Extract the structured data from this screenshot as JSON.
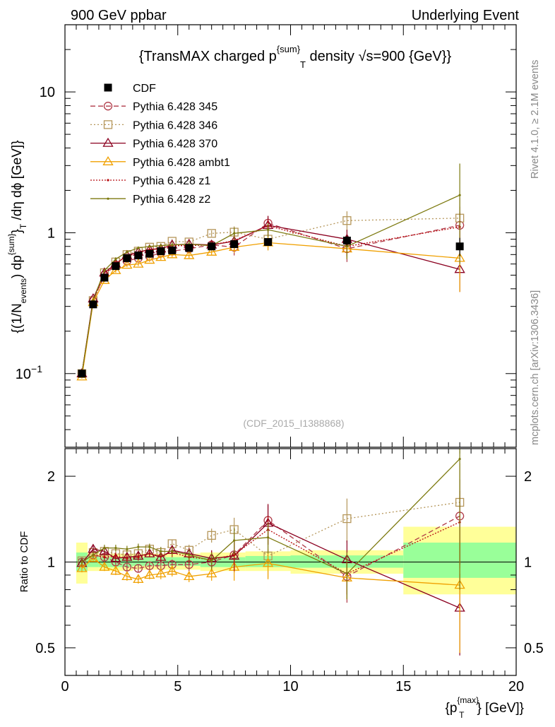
{
  "header": {
    "left": "900 GeV ppbar",
    "right": "Underlying Event"
  },
  "side_labels": {
    "rivet": "Rivet 4.1.0, ≥ 2.1M events",
    "mcplots": "mcplots.cern.ch [arXiv:1306.3436]"
  },
  "watermark": "(CDF_2015_I1388868)",
  "colors": {
    "cdf": "#000000",
    "p345": "#b03a48",
    "p346": "#b5965a",
    "p370": "#8b0020",
    "ambt1": "#f0a000",
    "z1": "#b80c10",
    "z2": "#7d7a10",
    "band_green": "#99ff99",
    "band_yellow": "#ffff99"
  },
  "chart_data": [
    {
      "type": "line",
      "title": "{TransMAX charged p^{sum}_T density √s=900 {GeV}}",
      "title_parts": {
        "a": "{TransMAX charged p",
        "sup": "{sum}",
        "sub": "T",
        "b": " density √s=900 {GeV}}"
      },
      "ylabel_parts": {
        "a": "{(1/N",
        "sub1": "events",
        "b": ") dp",
        "sup2": "{sum}",
        "c": "}",
        "sub3": "T",
        "d": " /dη  dϕ  [GeV]}"
      },
      "yscale": "log",
      "xlim": [
        0,
        20
      ],
      "ylim": [
        0.03,
        30
      ],
      "yticks": [
        {
          "v": 0.1,
          "label": "10",
          "exp": "−1"
        },
        {
          "v": 1,
          "label": "1",
          "exp": ""
        },
        {
          "v": 10,
          "label": "10",
          "exp": ""
        }
      ],
      "x": [
        0.75,
        1.25,
        1.75,
        2.25,
        2.75,
        3.25,
        3.75,
        4.25,
        4.75,
        5.5,
        6.5,
        7.5,
        9.0,
        12.5,
        17.5
      ],
      "series": [
        {
          "key": "cdf",
          "name": "CDF",
          "marker": "square_filled",
          "dash": "",
          "values": [
            0.1,
            0.31,
            0.48,
            0.58,
            0.66,
            0.69,
            0.71,
            0.74,
            0.75,
            0.78,
            0.8,
            0.83,
            0.86,
            0.88,
            0.8
          ],
          "err": [
            0.005,
            0.01,
            0.015,
            0.02,
            0.02,
            0.02,
            0.02,
            0.025,
            0.025,
            0.03,
            0.03,
            0.04,
            0.05,
            0.07,
            0.12
          ]
        },
        {
          "key": "p345",
          "name": "Pythia 6.428 345",
          "marker": "circle_open",
          "dash": "7,4",
          "values": [
            0.1,
            0.33,
            0.5,
            0.59,
            0.63,
            0.66,
            0.68,
            0.72,
            0.74,
            0.77,
            0.82,
            0.79,
            1.17,
            0.77,
            1.13
          ],
          "err": [
            0.003,
            0.01,
            0.015,
            0.02,
            0.02,
            0.02,
            0.02,
            0.03,
            0.03,
            0.04,
            0.05,
            0.1,
            0.15,
            0.15,
            0.4
          ]
        },
        {
          "key": "p346",
          "name": "Pythia 6.428 346",
          "marker": "square_open",
          "dash": "2,3",
          "values": [
            0.1,
            0.33,
            0.52,
            0.62,
            0.7,
            0.74,
            0.79,
            0.8,
            0.87,
            0.86,
            0.99,
            1.01,
            0.9,
            1.22,
            1.27
          ],
          "err": [
            0.003,
            0.01,
            0.015,
            0.02,
            0.02,
            0.02,
            0.03,
            0.03,
            0.03,
            0.04,
            0.05,
            0.1,
            0.15,
            0.2,
            0.5
          ]
        },
        {
          "key": "p370",
          "name": "Pythia 6.428 370",
          "marker": "triangle_open",
          "dash": "",
          "values": [
            0.1,
            0.34,
            0.52,
            0.6,
            0.69,
            0.73,
            0.76,
            0.77,
            0.82,
            0.83,
            0.82,
            0.87,
            1.13,
            0.9,
            0.55
          ],
          "err": [
            0.003,
            0.01,
            0.015,
            0.02,
            0.02,
            0.02,
            0.02,
            0.03,
            0.03,
            0.04,
            0.05,
            0.1,
            0.18,
            0.15,
            0.17
          ]
        },
        {
          "key": "ambt1",
          "name": "Pythia 6.428 ambt1",
          "marker": "triangle_open",
          "dash": "",
          "values": [
            0.095,
            0.32,
            0.46,
            0.54,
            0.59,
            0.6,
            0.64,
            0.67,
            0.7,
            0.69,
            0.73,
            0.79,
            0.85,
            0.77,
            0.66
          ],
          "err": [
            0.003,
            0.01,
            0.015,
            0.02,
            0.02,
            0.02,
            0.02,
            0.03,
            0.03,
            0.03,
            0.04,
            0.07,
            0.1,
            0.12,
            0.28
          ]
        },
        {
          "key": "z1",
          "name": "Pythia 6.428 z1",
          "marker": "dot",
          "dash": "2,2",
          "values": [
            0.1,
            0.33,
            0.5,
            0.61,
            0.68,
            0.72,
            0.76,
            0.78,
            0.81,
            0.81,
            0.82,
            0.88,
            1.12,
            0.8,
            1.1
          ],
          "err": [
            0.003,
            0.01,
            0.015,
            0.02,
            0.02,
            0.02,
            0.02,
            0.03,
            0.03,
            0.04,
            0.05,
            0.1,
            0.12,
            0.12,
            0.3
          ]
        },
        {
          "key": "z2",
          "name": "Pythia 6.428 z2",
          "marker": "dot",
          "dash": "",
          "values": [
            0.1,
            0.33,
            0.54,
            0.65,
            0.73,
            0.78,
            0.8,
            0.81,
            0.82,
            0.83,
            0.81,
            0.99,
            1.05,
            0.8,
            1.85
          ],
          "err": [
            0.003,
            0.01,
            0.015,
            0.02,
            0.02,
            0.02,
            0.02,
            0.03,
            0.03,
            0.04,
            0.05,
            0.1,
            0.12,
            0.15,
            1.25
          ]
        }
      ]
    },
    {
      "type": "line",
      "ylabel": "Ratio to CDF",
      "xlabel_parts": {
        "a": "{p",
        "sup": "{max}",
        "sub": "T",
        "b": "} [GeV]}"
      },
      "yscale": "log",
      "xlim": [
        0,
        20
      ],
      "ylim": [
        0.4,
        2.5
      ],
      "xticks": [
        0,
        5,
        10,
        15,
        20
      ],
      "yticks": [
        {
          "v": 0.5,
          "label": "0.5"
        },
        {
          "v": 1,
          "label": "1"
        },
        {
          "v": 2,
          "label": "2"
        }
      ],
      "bands": [
        {
          "x0": 0.5,
          "x1": 1.0,
          "green": [
            0.93,
            1.08
          ],
          "yellow": [
            0.84,
            1.17
          ]
        },
        {
          "x0": 1.0,
          "x1": 1.5,
          "green": [
            0.96,
            1.05
          ],
          "yellow": [
            0.93,
            1.08
          ]
        },
        {
          "x0": 1.5,
          "x1": 3.0,
          "green": [
            0.96,
            1.04
          ],
          "yellow": [
            0.93,
            1.07
          ]
        },
        {
          "x0": 3.0,
          "x1": 6.0,
          "green": [
            0.97,
            1.04
          ],
          "yellow": [
            0.94,
            1.07
          ]
        },
        {
          "x0": 6.0,
          "x1": 8.0,
          "green": [
            0.96,
            1.04
          ],
          "yellow": [
            0.93,
            1.08
          ]
        },
        {
          "x0": 8.0,
          "x1": 10.0,
          "green": [
            0.96,
            1.05
          ],
          "yellow": [
            0.93,
            1.09
          ]
        },
        {
          "x0": 10.0,
          "x1": 15.0,
          "green": [
            0.955,
            1.055
          ],
          "yellow": [
            0.91,
            1.1
          ]
        },
        {
          "x0": 15.0,
          "x1": 20.0,
          "green": [
            0.88,
            1.17
          ],
          "yellow": [
            0.77,
            1.33
          ]
        }
      ],
      "series": [
        {
          "key": "p345",
          "values": [
            1.0,
            1.06,
            1.04,
            1.0,
            0.96,
            0.95,
            0.97,
            0.97,
            0.98,
            0.98,
            1.0,
            1.06,
            1.4,
            0.89,
            1.45
          ],
          "err": [
            0.03,
            0.03,
            0.03,
            0.03,
            0.03,
            0.03,
            0.03,
            0.04,
            0.04,
            0.05,
            0.07,
            0.13,
            0.2,
            0.17,
            0.5
          ]
        },
        {
          "key": "p346",
          "values": [
            1.01,
            1.08,
            1.09,
            1.07,
            1.06,
            1.07,
            1.11,
            1.08,
            1.16,
            1.1,
            1.24,
            1.3,
            1.05,
            1.42,
            1.62
          ],
          "err": [
            0.03,
            0.03,
            0.03,
            0.03,
            0.03,
            0.03,
            0.04,
            0.04,
            0.04,
            0.05,
            0.07,
            0.13,
            0.17,
            0.25,
            0.6
          ]
        },
        {
          "key": "p370",
          "values": [
            0.99,
            1.11,
            1.09,
            1.03,
            1.04,
            1.05,
            1.07,
            1.04,
            1.1,
            1.07,
            1.03,
            1.05,
            1.37,
            1.02,
            0.69
          ],
          "err": [
            0.03,
            0.03,
            0.03,
            0.03,
            0.03,
            0.03,
            0.03,
            0.04,
            0.04,
            0.05,
            0.07,
            0.13,
            0.22,
            0.17,
            0.22
          ]
        },
        {
          "key": "ambt1",
          "values": [
            0.95,
            1.03,
            0.96,
            0.93,
            0.89,
            0.87,
            0.9,
            0.91,
            0.93,
            0.89,
            0.91,
            0.96,
            0.99,
            0.88,
            0.83
          ],
          "err": [
            0.03,
            0.03,
            0.03,
            0.03,
            0.03,
            0.03,
            0.03,
            0.04,
            0.04,
            0.04,
            0.05,
            0.1,
            0.12,
            0.14,
            0.35
          ]
        },
        {
          "key": "z1",
          "values": [
            1.0,
            1.06,
            1.04,
            1.05,
            1.03,
            1.04,
            1.07,
            1.05,
            1.08,
            1.04,
            1.02,
            1.06,
            1.3,
            0.91,
            1.38
          ],
          "err": [
            0.03,
            0.03,
            0.03,
            0.03,
            0.03,
            0.03,
            0.03,
            0.04,
            0.04,
            0.05,
            0.07,
            0.13,
            0.15,
            0.14,
            0.4
          ]
        },
        {
          "key": "z2",
          "values": [
            1.0,
            1.06,
            1.12,
            1.12,
            1.11,
            1.13,
            1.13,
            1.09,
            1.09,
            1.06,
            1.01,
            1.19,
            1.22,
            0.91,
            2.3
          ],
          "err": [
            0.03,
            0.03,
            0.03,
            0.03,
            0.03,
            0.03,
            0.03,
            0.04,
            0.04,
            0.05,
            0.07,
            0.13,
            0.15,
            0.17,
            1.5
          ]
        }
      ]
    }
  ]
}
